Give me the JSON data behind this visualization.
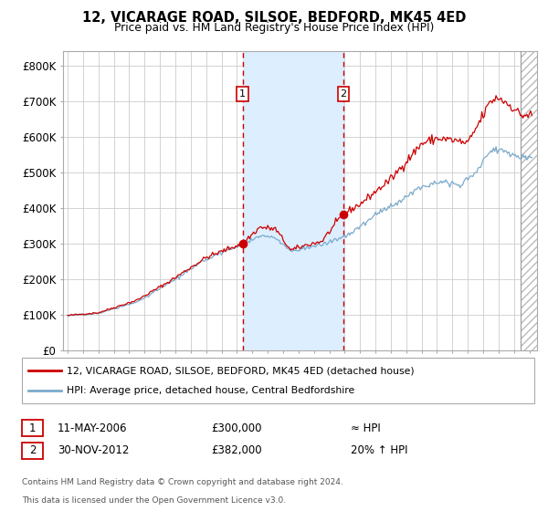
{
  "title": "12, VICARAGE ROAD, SILSOE, BEDFORD, MK45 4ED",
  "subtitle": "Price paid vs. HM Land Registry's House Price Index (HPI)",
  "legend_line1": "12, VICARAGE ROAD, SILSOE, BEDFORD, MK45 4ED (detached house)",
  "legend_line2": "HPI: Average price, detached house, Central Bedfordshire",
  "transaction1_label": "11-MAY-2006",
  "transaction1_price": "£300,000",
  "transaction1_vs": "≈ HPI",
  "transaction1_date_num": 2006.37,
  "transaction1_value": 300000,
  "transaction2_label": "30-NOV-2012",
  "transaction2_price": "£382,000",
  "transaction2_vs": "20% ↑ HPI",
  "transaction2_date_num": 2012.92,
  "transaction2_value": 382000,
  "footnote1": "Contains HM Land Registry data © Crown copyright and database right 2024.",
  "footnote2": "This data is licensed under the Open Government Licence v3.0.",
  "red_color": "#cc0000",
  "blue_color": "#7aaacc",
  "shade_color": "#ddeeff",
  "grid_color": "#cccccc",
  "bg_color": "#ffffff",
  "ylim": [
    0,
    840000
  ],
  "xlim_start": 1994.7,
  "xlim_end": 2025.5,
  "hatch_start": 2024.42
}
